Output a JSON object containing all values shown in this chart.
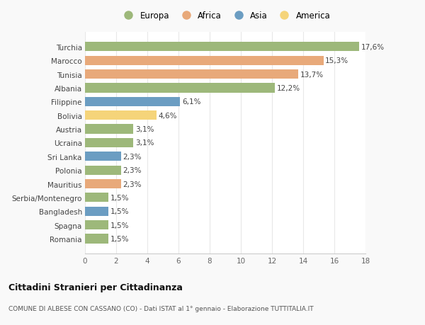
{
  "categories": [
    "Romania",
    "Spagna",
    "Bangladesh",
    "Serbia/Montenegro",
    "Mauritius",
    "Polonia",
    "Sri Lanka",
    "Ucraina",
    "Austria",
    "Bolivia",
    "Filippine",
    "Albania",
    "Tunisia",
    "Marocco",
    "Turchia"
  ],
  "values": [
    1.5,
    1.5,
    1.5,
    1.5,
    2.3,
    2.3,
    2.3,
    3.1,
    3.1,
    4.6,
    6.1,
    12.2,
    13.7,
    15.3,
    17.6
  ],
  "colors": [
    "#9db87a",
    "#9db87a",
    "#6b9dc2",
    "#9db87a",
    "#e8a97a",
    "#9db87a",
    "#6b9dc2",
    "#9db87a",
    "#9db87a",
    "#f5d47a",
    "#6b9dc2",
    "#9db87a",
    "#e8a97a",
    "#e8a97a",
    "#9db87a"
  ],
  "labels": [
    "1,5%",
    "1,5%",
    "1,5%",
    "1,5%",
    "2,3%",
    "2,3%",
    "2,3%",
    "3,1%",
    "3,1%",
    "4,6%",
    "6,1%",
    "12,2%",
    "13,7%",
    "15,3%",
    "17,6%"
  ],
  "legend_labels": [
    "Europa",
    "Africa",
    "Asia",
    "America"
  ],
  "legend_colors": [
    "#9db87a",
    "#e8a97a",
    "#6b9dc2",
    "#f5d47a"
  ],
  "title": "Cittadini Stranieri per Cittadinanza",
  "subtitle": "COMUNE DI ALBESE CON CASSANO (CO) - Dati ISTAT al 1° gennaio - Elaborazione TUTTITALIA.IT",
  "xlim": [
    0,
    18
  ],
  "xticks": [
    0,
    2,
    4,
    6,
    8,
    10,
    12,
    14,
    16,
    18
  ],
  "background_color": "#f9f9f9",
  "plot_bg_color": "#ffffff",
  "grid_color": "#e8e8e8",
  "bar_height": 0.68
}
